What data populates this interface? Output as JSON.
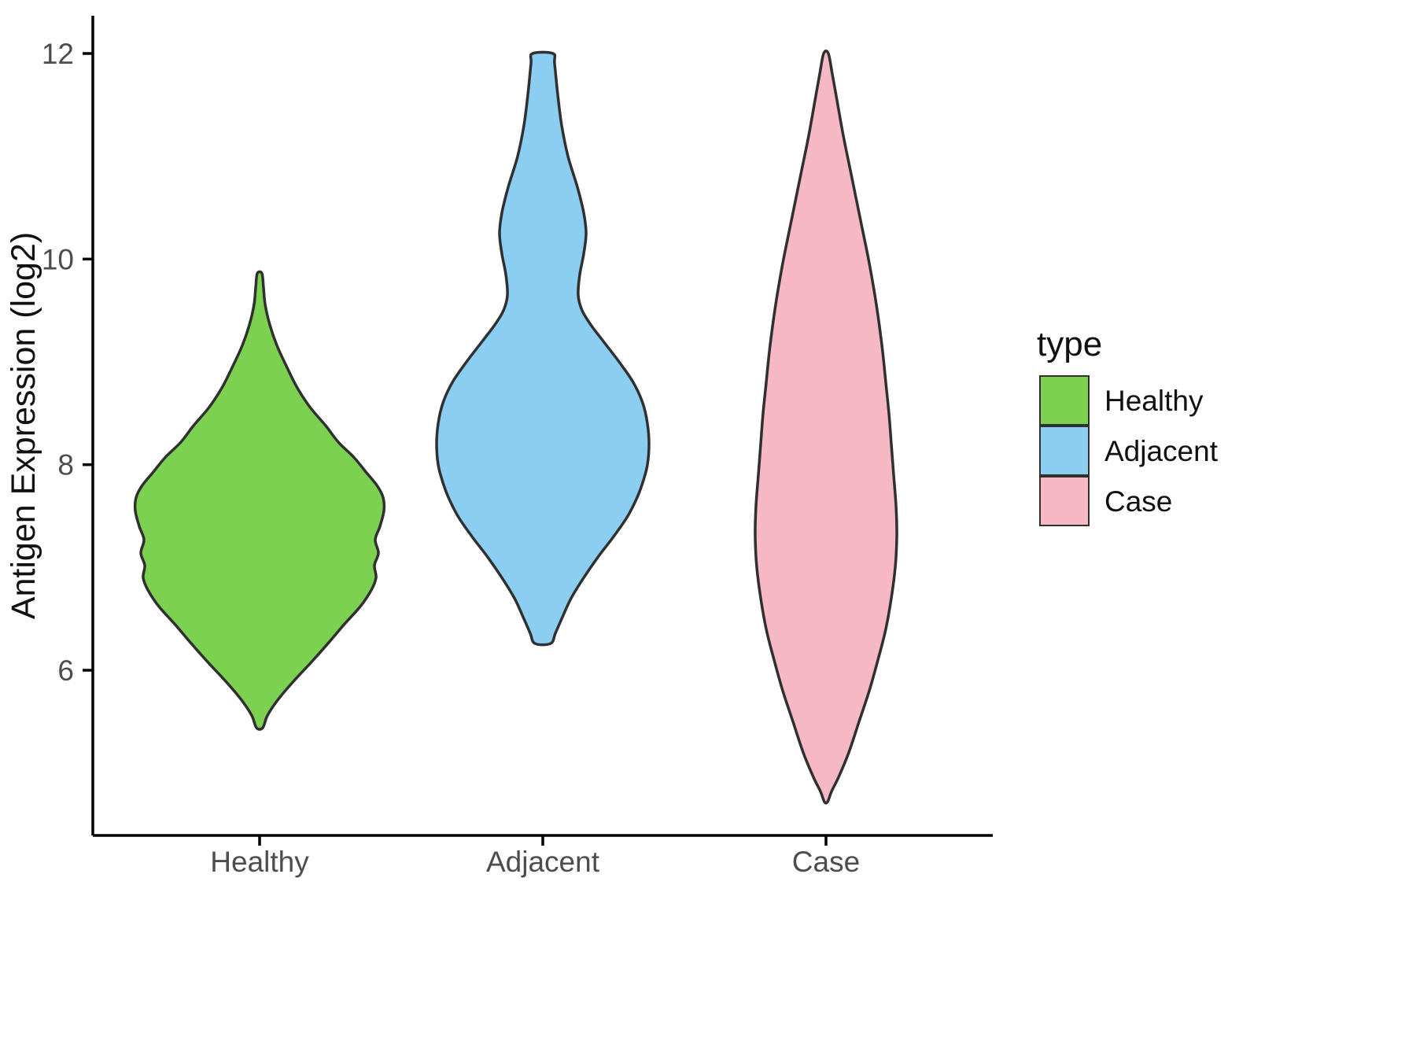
{
  "chart_data": {
    "type": "violin",
    "title": "",
    "xlabel": "",
    "ylabel": "Antigen Expression (log2)",
    "categories": [
      "Healthy",
      "Adjacent",
      "Case"
    ],
    "yticks": [
      6,
      8,
      10,
      12
    ],
    "ylim": [
      4.4,
      12.4
    ],
    "grid": false,
    "legend_position": "right",
    "legend_title": "type",
    "profile_units": "each profile point is [antigen_expression_log2, density_halfwidth_px]",
    "series": [
      {
        "name": "Healthy",
        "color": "#7CD250",
        "outline": "#303030",
        "range": [
          5.44,
          9.86
        ],
        "profile": [
          [
            5.44,
            4
          ],
          [
            5.56,
            10
          ],
          [
            5.72,
            24
          ],
          [
            5.9,
            44
          ],
          [
            6.08,
            66
          ],
          [
            6.27,
            88
          ],
          [
            6.45,
            108
          ],
          [
            6.62,
            128
          ],
          [
            6.78,
            142
          ],
          [
            6.9,
            148
          ],
          [
            7.02,
            146
          ],
          [
            7.14,
            151
          ],
          [
            7.27,
            147
          ],
          [
            7.4,
            153
          ],
          [
            7.55,
            158
          ],
          [
            7.68,
            157
          ],
          [
            7.8,
            149
          ],
          [
            7.93,
            135
          ],
          [
            8.07,
            120
          ],
          [
            8.22,
            100
          ],
          [
            8.38,
            84
          ],
          [
            8.56,
            64
          ],
          [
            8.76,
            47
          ],
          [
            8.96,
            34
          ],
          [
            9.16,
            22
          ],
          [
            9.36,
            13
          ],
          [
            9.56,
            7
          ],
          [
            9.72,
            5
          ],
          [
            9.86,
            3
          ]
        ]
      },
      {
        "name": "Adjacent",
        "color": "#8BCEF2",
        "outline": "#303030",
        "range": [
          6.26,
          12.0
        ],
        "profile": [
          [
            6.26,
            10
          ],
          [
            6.36,
            16
          ],
          [
            6.5,
            24
          ],
          [
            6.7,
            36
          ],
          [
            6.9,
            52
          ],
          [
            7.1,
            70
          ],
          [
            7.3,
            90
          ],
          [
            7.5,
            108
          ],
          [
            7.7,
            121
          ],
          [
            7.85,
            128
          ],
          [
            8.0,
            133
          ],
          [
            8.2,
            135
          ],
          [
            8.4,
            133
          ],
          [
            8.6,
            127
          ],
          [
            8.8,
            115
          ],
          [
            9.0,
            97
          ],
          [
            9.2,
            77
          ],
          [
            9.35,
            62
          ],
          [
            9.5,
            50
          ],
          [
            9.65,
            45
          ],
          [
            9.85,
            47
          ],
          [
            10.05,
            52
          ],
          [
            10.25,
            55
          ],
          [
            10.45,
            52
          ],
          [
            10.7,
            44
          ],
          [
            11.0,
            32
          ],
          [
            11.3,
            24
          ],
          [
            11.6,
            19
          ],
          [
            11.9,
            15
          ],
          [
            12.0,
            13
          ]
        ]
      },
      {
        "name": "Case",
        "color": "#F5B8C4",
        "outline": "#303030",
        "range": [
          4.72,
          12.0
        ],
        "profile": [
          [
            4.72,
            2
          ],
          [
            4.82,
            7
          ],
          [
            4.96,
            16
          ],
          [
            5.2,
            29
          ],
          [
            5.5,
            42
          ],
          [
            5.8,
            55
          ],
          [
            6.1,
            66
          ],
          [
            6.4,
            76
          ],
          [
            6.7,
            83
          ],
          [
            7.0,
            88
          ],
          [
            7.3,
            90
          ],
          [
            7.6,
            89
          ],
          [
            7.9,
            86
          ],
          [
            8.2,
            83
          ],
          [
            8.5,
            80
          ],
          [
            8.8,
            76
          ],
          [
            9.1,
            72
          ],
          [
            9.4,
            67
          ],
          [
            9.7,
            61
          ],
          [
            10.0,
            54
          ],
          [
            10.3,
            46
          ],
          [
            10.6,
            38
          ],
          [
            10.9,
            30
          ],
          [
            11.2,
            22
          ],
          [
            11.5,
            15
          ],
          [
            11.8,
            8
          ],
          [
            12.0,
            3
          ]
        ]
      }
    ]
  }
}
